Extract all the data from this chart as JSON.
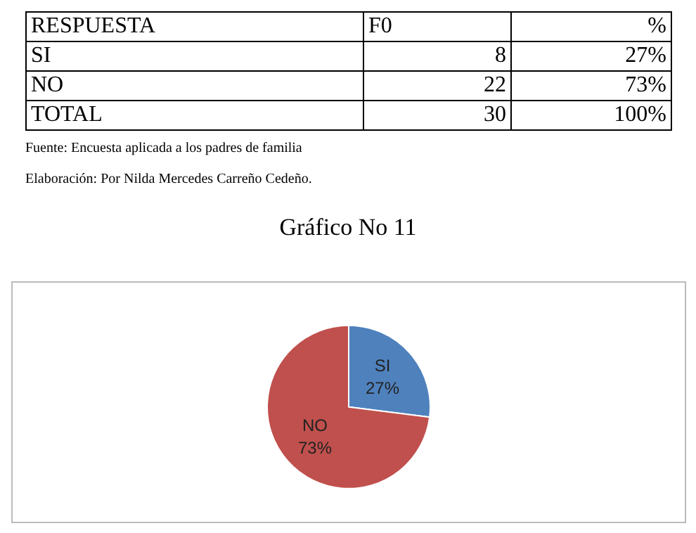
{
  "chart_data": [
    {
      "type": "other",
      "annotations": [
        "RESPUESTA",
        "F0",
        "%",
        "SI",
        "8",
        "27%",
        "NO",
        "22",
        "73%",
        "TOTAL",
        "30",
        "100%",
        "Fuente: Encuesta aplicada a los padres de familia",
        "Elaboración: Por Nilda Mercedes Carreño Cedeño."
      ]
    },
    {
      "type": "pie",
      "title": "Gráfico No 11",
      "categories": [
        "SI",
        "NO"
      ],
      "values": [
        27,
        73
      ],
      "value_labels": [
        "27%",
        "73%"
      ],
      "colors": [
        "#4f81bd",
        "#c0504d"
      ],
      "legend": false
    }
  ]
}
